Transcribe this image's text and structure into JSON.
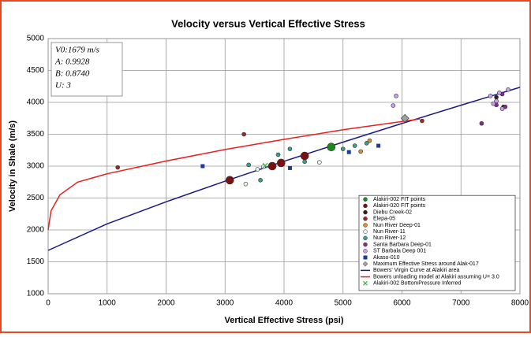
{
  "chart_data": {
    "type": "scatter",
    "title": "Velocity versus Vertical Effective Stress",
    "x_label": "Vertical Effective Stress (psi)",
    "y_label": "Velocity in Shale (m/s)",
    "xlim": [
      0,
      8000
    ],
    "ylim": [
      1000,
      5000
    ],
    "xticks": [
      0,
      1000,
      2000,
      3000,
      4000,
      5000,
      6000,
      7000,
      8000
    ],
    "yticks": [
      1000,
      1500,
      2000,
      2500,
      3000,
      3500,
      4000,
      4500,
      5000
    ],
    "grid": true,
    "legend": "lower right",
    "annotations": [
      "V0:1679 m/s",
      "A: 0.9928",
      "B: 0.8740",
      "U: 3"
    ],
    "series": [
      {
        "name": "Alakiri-002 FIT points",
        "color": "#1a8a1a",
        "marker": "circle-large",
        "x": [
          4800
        ],
        "values": [
          3300
        ]
      },
      {
        "name": "Alakiri-020 FIT points",
        "color": "#7a1010",
        "marker": "circle-large",
        "x": [
          3080,
          3800,
          3950,
          4350
        ],
        "values": [
          2780,
          3000,
          3050,
          3160
        ]
      },
      {
        "name": "Diebu Creek-02",
        "color": "#3a1a1a",
        "marker": "circle",
        "x": [
          7720,
          7600
        ],
        "values": [
          3930,
          4080
        ]
      },
      {
        "name": "Elepa-05",
        "color": "#a02828",
        "marker": "circle",
        "x": [
          1180,
          3320,
          6340
        ],
        "values": [
          2980,
          3500,
          3710
        ]
      },
      {
        "name": "Nun River Deep-01",
        "color": "#d89030",
        "marker": "circle",
        "x": [
          5300,
          5450
        ],
        "values": [
          3230,
          3400
        ]
      },
      {
        "name": "Nun River-11",
        "color": "#e6f4f4",
        "marker": "circle",
        "x": [
          3350,
          3550,
          4600,
          3650
        ],
        "values": [
          2720,
          2950,
          3060,
          2990
        ]
      },
      {
        "name": "Nun River-12",
        "color": "#3aa08a",
        "marker": "circle",
        "x": [
          3400,
          3600,
          3900,
          4100,
          4350,
          5000,
          5200,
          5400
        ],
        "values": [
          3020,
          2780,
          3180,
          3270,
          3070,
          3270,
          3320,
          3360
        ]
      },
      {
        "name": "Santa Barbara Deep-01",
        "color": "#8a2a8a",
        "marker": "circle",
        "x": [
          7350,
          7600,
          7700,
          7750
        ],
        "values": [
          3670,
          3960,
          4130,
          3930
        ]
      },
      {
        "name": "ST Barbala Deep 001",
        "color": "#c8a0f0",
        "marker": "circle",
        "x": [
          5850,
          5900,
          7500,
          7600,
          7700,
          7800,
          7650,
          7550
        ],
        "values": [
          3950,
          4100,
          4100,
          4020,
          3900,
          4200,
          4150,
          3980
        ]
      },
      {
        "name": "Akaso-010",
        "color": "#1a3aa0",
        "marker": "square",
        "x": [
          2620,
          4100,
          5100,
          5600
        ],
        "values": [
          3000,
          2970,
          3220,
          3320
        ]
      },
      {
        "name": "Maximum Effective Stress around Alak-017",
        "color": "#a0a0a0",
        "marker": "diamond",
        "x": [
          6050
        ],
        "values": [
          3750
        ]
      },
      {
        "name": "Bowers' Virgin Curve at Alakiri area",
        "color": "#1a1a80",
        "marker": "line",
        "x": [
          0,
          1000,
          2000,
          3000,
          4000,
          5000,
          6000,
          7000,
          8000
        ],
        "values": [
          1679,
          2095,
          2441,
          2764,
          3076,
          3377,
          3669,
          3955,
          4236
        ]
      },
      {
        "name": "Bowers unloading model at Alakiri assuming  U= 3.0",
        "color": "#e82020",
        "marker": "line",
        "x": [
          0,
          50,
          200,
          500,
          1000,
          2000,
          3000,
          4000,
          5000,
          6000,
          6300
        ],
        "values": [
          2000,
          2300,
          2550,
          2750,
          2880,
          3080,
          3260,
          3420,
          3570,
          3700,
          3740
        ]
      },
      {
        "name": "Alakiri-002 BottomPressure Inferred",
        "color": "#40b040",
        "marker": "x",
        "x": [
          3680
        ],
        "values": [
          3010
        ]
      }
    ]
  }
}
